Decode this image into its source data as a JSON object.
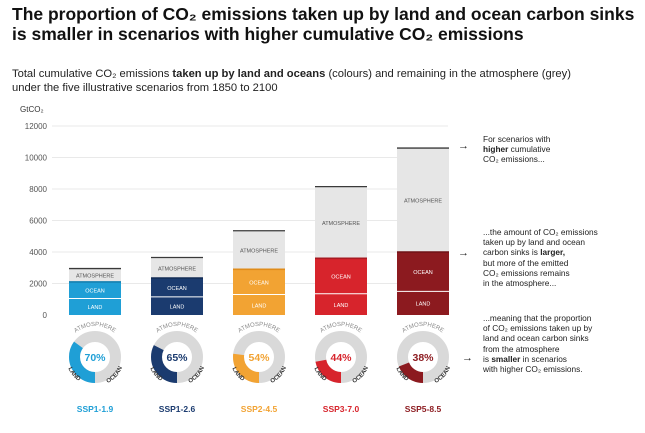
{
  "title_line1": "The proportion of CO₂ emissions taken up by land and ocean carbon sinks",
  "title_line2": "is smaller in scenarios with higher cumulative CO₂ emissions",
  "subtitle": {
    "part1": "Total cumulative CO₂ emissions ",
    "bold": "taken up by land and oceans",
    "part2": " (colours) and remaining in the atmosphere (grey)",
    "line2": "under the five illustrative scenarios from 1850 to 2100"
  },
  "colors": {
    "atmosphere": "#e6e6e6",
    "atmosphere_border": "#3a3a3a",
    "grid": "#e2e2e2",
    "donut_ring": "#d9d9d9",
    "label_grey": "#8a8a8a"
  },
  "chart_data": {
    "type": "bar",
    "stacked": true,
    "ylabel": "GtCO₂",
    "ylim": [
      0,
      12000
    ],
    "yticks": [
      0,
      2000,
      4000,
      6000,
      8000,
      10000,
      12000
    ],
    "grid": true,
    "categories": [
      "SSP1-1.9",
      "SSP1-2.6",
      "SSP2-4.5",
      "SSP3-7.0",
      "SSP5-8.5"
    ],
    "category_colors": [
      "#1f9fd6",
      "#1b3b6f",
      "#f2a333",
      "#d7242c",
      "#8c1a1f"
    ],
    "category_dark": [
      "#1580b0",
      "#132c55",
      "#e08c1a",
      "#a81a21",
      "#6e1216"
    ],
    "series": [
      {
        "name": "LAND",
        "values": [
          1050,
          1150,
          1300,
          1350,
          1500
        ]
      },
      {
        "name": "OCEAN",
        "values": [
          1050,
          1200,
          1600,
          2250,
          2500
        ]
      },
      {
        "name": "ATMOSPHERE",
        "values": [
          850,
          1300,
          2450,
          4550,
          6600
        ]
      }
    ],
    "sink_fraction_labels": [
      "70%",
      "65%",
      "54%",
      "44%",
      "38%"
    ],
    "sink_fractions": [
      0.7,
      0.65,
      0.54,
      0.44,
      0.38
    ]
  },
  "donut_labels": {
    "atmosphere": "ATMOSPHERE",
    "land": "LAND",
    "ocean": "OCEAN"
  },
  "annotations": {
    "a1": {
      "l1": "For scenarios with",
      "l2b": "higher",
      "l2": " cumulative",
      "l3": "CO₂ emissions..."
    },
    "a2": {
      "l1": "...the amount of CO₂ emissions",
      "l2": "taken up by land and ocean",
      "l3": "carbon sinks is ",
      "l3b": "larger,",
      "l4": "but more of the emitted",
      "l5": "CO₂ emissions remains",
      "l6": "in the atmosphere..."
    },
    "a3": {
      "l1": "...meaning that the proportion",
      "l2": "of CO₂ emissions taken up by",
      "l3": "land and ocean carbon sinks",
      "l4": "from the atmosphere",
      "l5": "is ",
      "l5b": "smaller",
      "l5c": " in scenarios",
      "l6": "with higher CO₂ emissions."
    },
    "arrow": "→"
  }
}
